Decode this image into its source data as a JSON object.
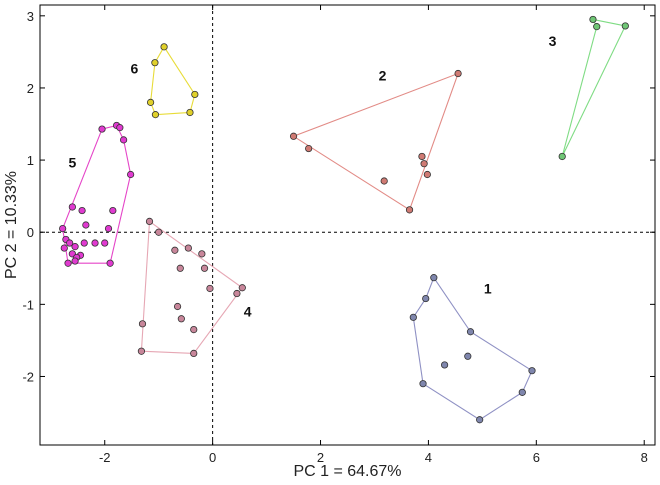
{
  "chart_data": {
    "type": "scatter",
    "title": "",
    "xlabel": "PC 1 = 64.67%",
    "ylabel": "PC 2 = 10.33%",
    "xlim": [
      -3.2,
      8.2
    ],
    "ylim": [
      -2.95,
      3.15
    ],
    "xticks": [
      -2,
      0,
      2,
      4,
      6,
      8
    ],
    "yticks": [
      -2,
      -1,
      0,
      1,
      2,
      3
    ],
    "xtick_labels": [
      "-2",
      "0",
      "2",
      "4",
      "6",
      "8"
    ],
    "ytick_labels": [
      "-2",
      "-1",
      "0",
      "1",
      "2",
      "3"
    ],
    "grid": false,
    "reference_lines": {
      "x": 0,
      "y": 0,
      "style": "dashed"
    },
    "series": [
      {
        "label": "1",
        "color": "#8f91c4",
        "marker": "#7f86ad",
        "points": [
          [
            4.1,
            -0.63
          ],
          [
            3.95,
            -0.92
          ],
          [
            3.72,
            -1.18
          ],
          [
            4.78,
            -1.38
          ],
          [
            4.3,
            -1.84
          ],
          [
            4.73,
            -1.72
          ],
          [
            3.9,
            -2.1
          ],
          [
            5.92,
            -1.92
          ],
          [
            5.74,
            -2.22
          ],
          [
            4.95,
            -2.6
          ]
        ],
        "hull": [
          [
            4.1,
            -0.63
          ],
          [
            4.78,
            -1.38
          ],
          [
            5.92,
            -1.92
          ],
          [
            5.74,
            -2.22
          ],
          [
            4.95,
            -2.6
          ],
          [
            3.9,
            -2.1
          ],
          [
            3.72,
            -1.18
          ],
          [
            3.95,
            -0.92
          ]
        ]
      },
      {
        "label": "2",
        "color": "#e28b86",
        "marker": "#d07a73",
        "points": [
          [
            4.55,
            2.2
          ],
          [
            1.5,
            1.33
          ],
          [
            1.78,
            1.16
          ],
          [
            3.88,
            1.05
          ],
          [
            3.92,
            0.95
          ],
          [
            3.98,
            0.8
          ],
          [
            3.18,
            0.71
          ],
          [
            3.65,
            0.31
          ]
        ],
        "hull": [
          [
            4.55,
            2.2
          ],
          [
            3.65,
            0.31
          ],
          [
            1.5,
            1.33
          ]
        ]
      },
      {
        "label": "3",
        "color": "#7fdc84",
        "marker": "#6fc675",
        "points": [
          [
            7.05,
            2.95
          ],
          [
            7.12,
            2.85
          ],
          [
            7.65,
            2.86
          ],
          [
            6.48,
            1.05
          ]
        ],
        "hull": [
          [
            7.05,
            2.95
          ],
          [
            7.65,
            2.86
          ],
          [
            6.48,
            1.05
          ],
          [
            7.12,
            2.85
          ]
        ]
      },
      {
        "label": "4",
        "color": "#e6a7b4",
        "marker": "#c8869a",
        "points": [
          [
            -1.17,
            0.15
          ],
          [
            -1.0,
            0.0
          ],
          [
            -0.7,
            -0.25
          ],
          [
            -0.45,
            -0.22
          ],
          [
            -0.2,
            -0.3
          ],
          [
            -0.15,
            -0.5
          ],
          [
            0.55,
            -0.77
          ],
          [
            0.45,
            -0.85
          ],
          [
            -0.6,
            -0.5
          ],
          [
            -0.05,
            -0.78
          ],
          [
            -1.3,
            -1.27
          ],
          [
            -0.65,
            -1.03
          ],
          [
            -0.58,
            -1.2
          ],
          [
            -0.35,
            -1.35
          ],
          [
            -1.32,
            -1.65
          ],
          [
            -0.35,
            -1.68
          ]
        ],
        "hull": [
          [
            -1.17,
            0.15
          ],
          [
            0.55,
            -0.77
          ],
          [
            -0.35,
            -1.68
          ],
          [
            -1.32,
            -1.65
          ]
        ]
      },
      {
        "label": "5",
        "color": "#e545c8",
        "marker": "#e03ad0",
        "points": [
          [
            -2.05,
            1.43
          ],
          [
            -1.78,
            1.48
          ],
          [
            -1.72,
            1.45
          ],
          [
            -1.65,
            1.28
          ],
          [
            -1.52,
            0.8
          ],
          [
            -2.6,
            0.35
          ],
          [
            -2.42,
            0.3
          ],
          [
            -1.85,
            0.3
          ],
          [
            -2.78,
            0.05
          ],
          [
            -1.93,
            0.05
          ],
          [
            -2.35,
            0.1
          ],
          [
            -2.72,
            -0.1
          ],
          [
            -2.65,
            -0.15
          ],
          [
            -2.55,
            -0.2
          ],
          [
            -2.38,
            -0.15
          ],
          [
            -2.18,
            -0.15
          ],
          [
            -2.0,
            -0.15
          ],
          [
            -2.75,
            -0.22
          ],
          [
            -2.6,
            -0.3
          ],
          [
            -2.45,
            -0.32
          ],
          [
            -2.52,
            -0.35
          ],
          [
            -2.68,
            -0.43
          ],
          [
            -2.55,
            -0.4
          ],
          [
            -1.9,
            -0.43
          ]
        ],
        "hull": [
          [
            -2.05,
            1.43
          ],
          [
            -1.78,
            1.48
          ],
          [
            -1.65,
            1.28
          ],
          [
            -1.52,
            0.8
          ],
          [
            -1.9,
            -0.43
          ],
          [
            -2.68,
            -0.43
          ],
          [
            -2.78,
            0.05
          ]
        ]
      },
      {
        "label": "6",
        "color": "#e8dc38",
        "marker": "#e0d02a",
        "points": [
          [
            -0.9,
            2.57
          ],
          [
            -1.07,
            2.35
          ],
          [
            -0.33,
            1.91
          ],
          [
            -1.15,
            1.8
          ],
          [
            -0.42,
            1.66
          ],
          [
            -1.06,
            1.63
          ]
        ],
        "hull": [
          [
            -0.9,
            2.57
          ],
          [
            -0.33,
            1.91
          ],
          [
            -0.42,
            1.66
          ],
          [
            -1.06,
            1.63
          ],
          [
            -1.15,
            1.8
          ],
          [
            -1.07,
            2.35
          ]
        ]
      }
    ]
  },
  "group_labels": [
    {
      "text": "1",
      "x": 5.1,
      "y": -0.85
    },
    {
      "text": "2",
      "x": 3.15,
      "y": 2.1
    },
    {
      "text": "3",
      "x": 6.3,
      "y": 2.58
    },
    {
      "text": "4",
      "x": 0.65,
      "y": -1.17
    },
    {
      "text": "5",
      "x": -2.6,
      "y": 0.9
    },
    {
      "text": "6",
      "x": -1.45,
      "y": 2.2
    }
  ]
}
